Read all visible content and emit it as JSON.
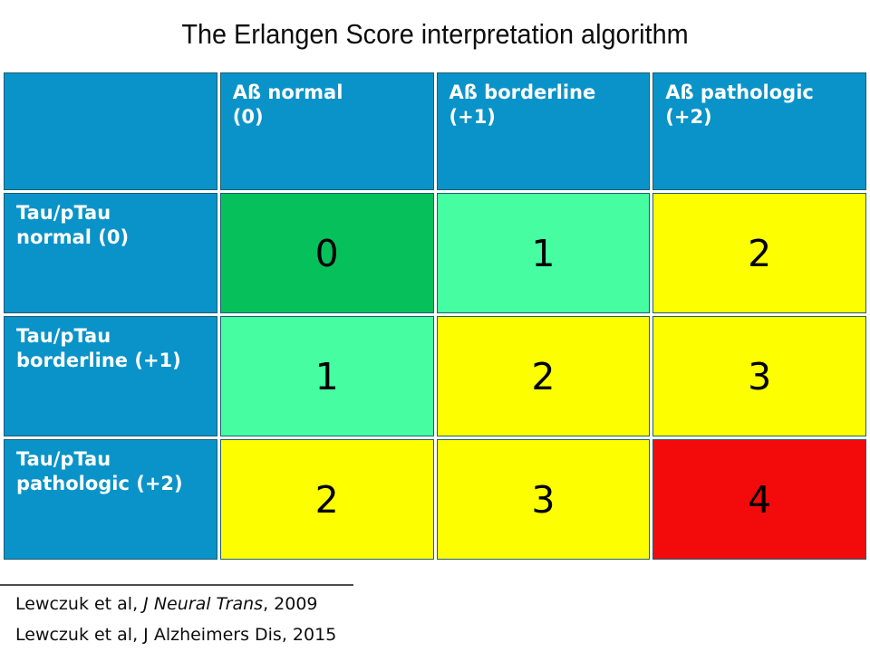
{
  "title": "The Erlangen Score interpretation algorithm",
  "colors": {
    "blue": "#0a93c8",
    "green": "#06c05c",
    "mint": "#46fda1",
    "yellow": "#fdff00",
    "red": "#f30b0b",
    "cell_outline": "#1f5d70",
    "separator_gray": "#4d4d4d"
  },
  "table": {
    "corner_label": "",
    "col_headers": [
      "Aß normal\n(0)",
      "Aß borderline\n(+1)",
      "Aß pathologic\n(+2)"
    ],
    "rows": [
      {
        "label": "Tau/pTau\nnormal (0)",
        "cells": [
          {
            "value": "0",
            "color": "green"
          },
          {
            "value": "1",
            "color": "mint"
          },
          {
            "value": "2",
            "color": "yellow"
          }
        ]
      },
      {
        "label": "Tau/pTau\nborderline (+1)",
        "cells": [
          {
            "value": "1",
            "color": "mint"
          },
          {
            "value": "2",
            "color": "yellow"
          },
          {
            "value": "3",
            "color": "yellow"
          }
        ]
      },
      {
        "label": "Tau/pTau\npathologic (+2)",
        "cells": [
          {
            "value": "2",
            "color": "yellow"
          },
          {
            "value": "3",
            "color": "yellow"
          },
          {
            "value": "4",
            "color": "red"
          }
        ]
      }
    ]
  },
  "citations": {
    "line1": {
      "pre": "Lewczuk et al, ",
      "journal": "J Neural Trans",
      "post": ", 2009"
    },
    "line2": {
      "pre": "Lewczuk et al, ",
      "journal": "J Alzheimers Dis",
      "post": ", 2015"
    }
  },
  "chart_data": {
    "type": "table",
    "title": "The Erlangen Score interpretation algorithm",
    "columns": [
      "",
      "Aß normal (0)",
      "Aß borderline (+1)",
      "Aß pathologic (+2)"
    ],
    "rows": [
      [
        "Tau/pTau normal (0)",
        0,
        1,
        2
      ],
      [
        "Tau/pTau borderline (+1)",
        1,
        2,
        3
      ],
      [
        "Tau/pTau pathologic (+2)",
        2,
        3,
        4
      ]
    ],
    "cell_colors": [
      [
        "green",
        "mint",
        "yellow"
      ],
      [
        "mint",
        "yellow",
        "yellow"
      ],
      [
        "yellow",
        "yellow",
        "red"
      ]
    ],
    "annotations": [
      "Lewczuk et al, J Neural Trans, 2009",
      "Lewczuk et al, J Alzheimers Dis, 2015"
    ]
  }
}
